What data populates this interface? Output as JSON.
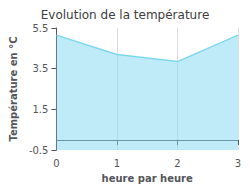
{
  "chart_data": {
    "type": "line",
    "title": "Evolution de la température",
    "xlabel": "heure par heure",
    "ylabel": "Température en °C",
    "x": [
      0,
      1,
      2,
      3
    ],
    "values": [
      5.15,
      4.2,
      3.85,
      5.15
    ],
    "color": "#7dd8ef",
    "xlim": [
      0,
      3
    ],
    "xticks": [
      0,
      1,
      2,
      3
    ],
    "ylim": [
      -0.5,
      5.5
    ],
    "yticks": [
      -0.5,
      1.5,
      3.5,
      5.5
    ],
    "grid": "x"
  }
}
